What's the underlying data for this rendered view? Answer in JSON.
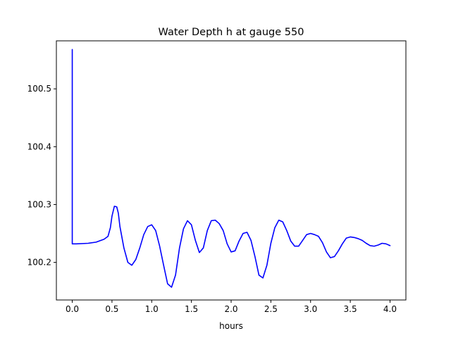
{
  "chart_data": {
    "type": "line",
    "title": "Water Depth h at gauge 550",
    "xlabel": "hours",
    "ylabel": "",
    "xlim": [
      -0.2,
      4.2
    ],
    "ylim": [
      100.135,
      100.583
    ],
    "grid": false,
    "x_ticks": [
      0.0,
      0.5,
      1.0,
      1.5,
      2.0,
      2.5,
      3.0,
      3.5,
      4.0
    ],
    "x_tick_labels": [
      "0.0",
      "0.5",
      "1.0",
      "1.5",
      "2.0",
      "2.5",
      "3.0",
      "3.5",
      "4.0"
    ],
    "y_ticks": [
      100.2,
      100.3,
      100.4,
      100.5
    ],
    "y_tick_labels": [
      "100.2",
      "100.3",
      "100.4",
      "100.5"
    ],
    "series": [
      {
        "color": "#0000ff",
        "x": [
          0.0,
          0.0,
          0.05,
          0.2,
          0.3,
          0.4,
          0.45,
          0.48,
          0.5,
          0.53,
          0.56,
          0.58,
          0.6,
          0.65,
          0.7,
          0.75,
          0.8,
          0.85,
          0.9,
          0.95,
          1.0,
          1.05,
          1.1,
          1.15,
          1.2,
          1.25,
          1.3,
          1.35,
          1.4,
          1.45,
          1.5,
          1.55,
          1.6,
          1.65,
          1.7,
          1.75,
          1.8,
          1.85,
          1.9,
          1.95,
          2.0,
          2.05,
          2.1,
          2.15,
          2.2,
          2.25,
          2.3,
          2.35,
          2.4,
          2.45,
          2.5,
          2.55,
          2.6,
          2.65,
          2.7,
          2.75,
          2.8,
          2.85,
          2.9,
          2.95,
          3.0,
          3.05,
          3.1,
          3.15,
          3.2,
          3.25,
          3.3,
          3.35,
          3.4,
          3.45,
          3.5,
          3.55,
          3.6,
          3.65,
          3.7,
          3.75,
          3.8,
          3.85,
          3.9,
          3.95,
          4.0
        ],
        "y": [
          100.568,
          100.232,
          100.232,
          100.233,
          100.235,
          100.24,
          100.245,
          100.26,
          100.28,
          100.297,
          100.296,
          100.285,
          100.262,
          100.225,
          100.2,
          100.195,
          100.205,
          100.225,
          100.248,
          100.262,
          100.265,
          100.255,
          100.228,
          100.195,
          100.163,
          100.157,
          100.178,
          100.225,
          100.258,
          100.272,
          100.265,
          100.238,
          100.217,
          100.225,
          100.255,
          100.272,
          100.273,
          100.267,
          100.255,
          100.232,
          100.218,
          100.22,
          100.237,
          100.25,
          100.252,
          100.238,
          100.21,
          100.178,
          100.173,
          100.195,
          100.233,
          100.26,
          100.273,
          100.27,
          100.255,
          100.237,
          100.228,
          100.228,
          100.238,
          100.248,
          100.25,
          100.248,
          100.245,
          100.234,
          100.218,
          100.208,
          100.21,
          100.22,
          100.232,
          100.242,
          100.244,
          100.243,
          100.241,
          100.238,
          100.233,
          100.229,
          100.228,
          100.23,
          100.233,
          100.232,
          100.229
        ]
      }
    ]
  }
}
